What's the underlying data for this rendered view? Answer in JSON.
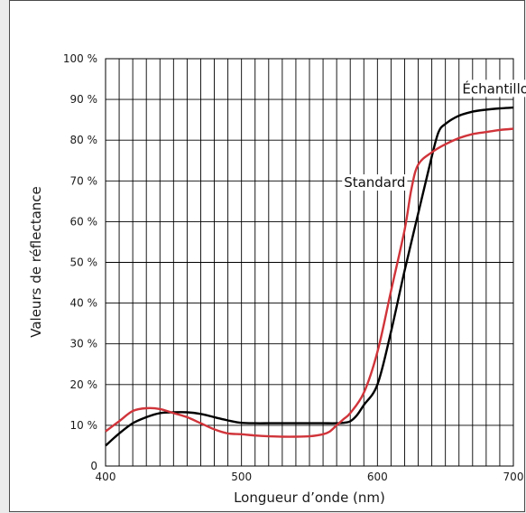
{
  "chart_data": {
    "type": "line",
    "title": "",
    "xlabel": "Longueur d’onde (nm)",
    "ylabel": "Valeurs de réflectance",
    "xlim": [
      400,
      700
    ],
    "ylim": [
      0,
      100
    ],
    "x_ticks": [
      400,
      500,
      600,
      700
    ],
    "y_ticks": [
      0,
      10,
      20,
      30,
      40,
      50,
      60,
      70,
      80,
      90,
      100
    ],
    "y_tick_labels": [
      "0",
      "10 %",
      "20 %",
      "30 %",
      "40 %",
      "50 %",
      "60 %",
      "70 %",
      "80 %",
      "90 %",
      "100 %"
    ],
    "grid": true,
    "grid_x_step_nm": 10,
    "series": [
      {
        "name": "Échantillon",
        "color": "#000000",
        "x": [
          400,
          410,
          420,
          430,
          440,
          450,
          460,
          470,
          480,
          490,
          500,
          510,
          520,
          530,
          540,
          550,
          560,
          570,
          575,
          580,
          585,
          590,
          600,
          610,
          620,
          630,
          640,
          645,
          650,
          660,
          670,
          680,
          690,
          700
        ],
        "y": [
          5,
          8,
          10.5,
          12,
          13,
          13.2,
          13.2,
          12.8,
          12,
          11.2,
          10.6,
          10.5,
          10.5,
          10.5,
          10.5,
          10.5,
          10.5,
          10.5,
          10.6,
          11,
          12.5,
          15,
          20,
          33,
          48,
          62,
          76,
          82,
          84,
          86,
          87,
          87.5,
          87.8,
          88
        ]
      },
      {
        "name": "Standard",
        "color": "#d0343a",
        "x": [
          400,
          410,
          420,
          430,
          440,
          450,
          460,
          470,
          480,
          490,
          500,
          510,
          520,
          530,
          540,
          550,
          560,
          565,
          570,
          575,
          580,
          590,
          600,
          610,
          620,
          625,
          630,
          640,
          650,
          660,
          670,
          680,
          690,
          700
        ],
        "y": [
          8.5,
          11,
          13.5,
          14.2,
          14,
          13,
          12,
          10.5,
          9,
          8,
          7.8,
          7.5,
          7.3,
          7.2,
          7.2,
          7.3,
          7.8,
          8.5,
          10,
          11.5,
          13,
          18,
          28,
          43,
          58,
          68,
          74,
          77,
          79,
          80.5,
          81.5,
          82,
          82.5,
          82.8
        ]
      }
    ],
    "annotations": [
      {
        "text": "Échantillon",
        "x": 690,
        "y": 91.5
      },
      {
        "text": "Standard",
        "x": 598,
        "y": 68.5
      }
    ]
  }
}
